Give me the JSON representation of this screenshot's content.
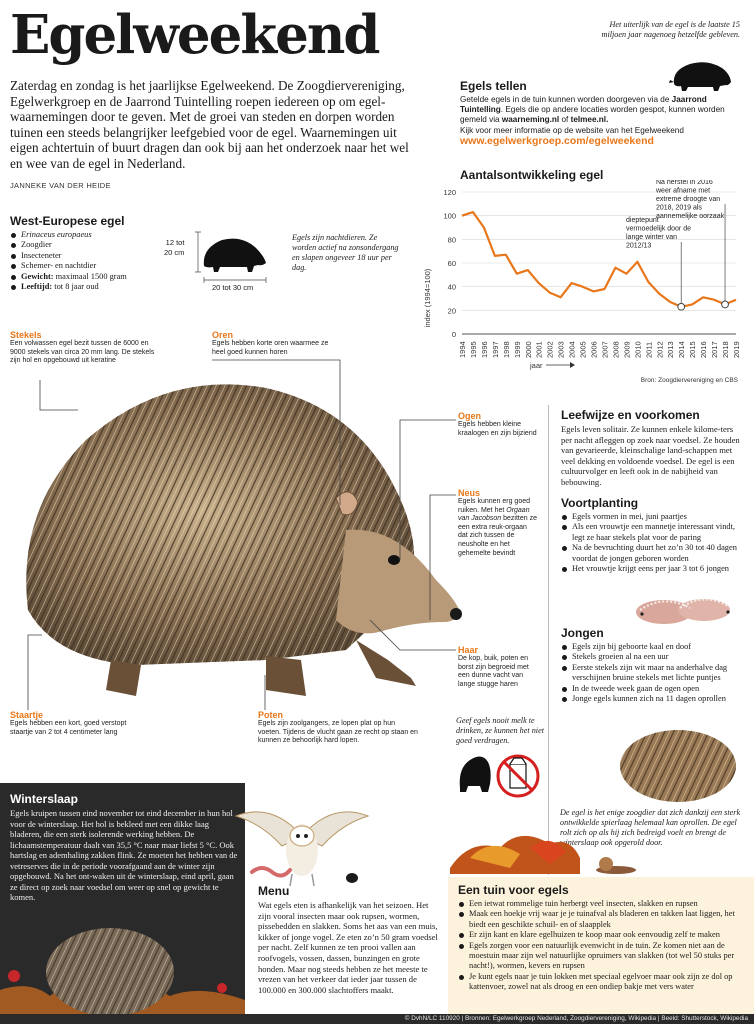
{
  "title": "Egelweekend",
  "intro": "Zaterdag en zondag is het jaarlijkse Egelweekend. De Zoogdiervereniging, Egelwerkgroep en de Jaarrond Tuintelling roepen iedereen op om egel-waarnemingen door te geven. Met de groei van steden en dorpen worden tuinen een steeds belangrijker leefgebied voor de egel. Waarnemingen uit eigen achtertuin of buurt dragen dan ook bij aan het onderzoek naar het wel en wee van de egel in Nederland.",
  "byline": "JANNEKE VAN DER HEIDE",
  "top_note": "Het uiterlijk van de egel is de laatste 15 miljoen jaar nagenoeg hetzelfde gebleven.",
  "tellen": {
    "title": "Egels tellen",
    "text_1": "Getelde egels in de tuin kunnen worden doorgeven via de ",
    "text_1_bold": "Jaarrond Tuintelling",
    "text_2": ". Egels die op andere locaties worden gespot, kunnen worden gemeld via ",
    "text_2_bold1": "waarneming.nl",
    "text_2_mid": " of ",
    "text_2_bold2": "telmee.nl.",
    "text_3": "Kijk voor meer informatie op de website van het Egelweekend",
    "link": "www.egelwerkgroep.com/egelweekend"
  },
  "west": {
    "title": "West-Europese egel",
    "items": [
      {
        "label": "",
        "value": "Erinaceus europaeus",
        "italic": true
      },
      {
        "label": "",
        "value": "Zoogdier"
      },
      {
        "label": "",
        "value": "Insecteneter"
      },
      {
        "label": "",
        "value": "Schemer- en nachtdier"
      },
      {
        "label": "Gewicht:",
        "value": " maximaal 1500 gram"
      },
      {
        "label": "Leeftijd:",
        "value": " tot 8 jaar oud"
      }
    ],
    "height_label": "12 tot\n20 cm",
    "length_label": "20 tot 30 cm",
    "night_note": "Egels zijn nachtdieren. Ze worden actief na zonsondergang en slapen ongeveer 18 uur per dag."
  },
  "chart_data": {
    "type": "line",
    "title": "Aantalsontwikkeling egel",
    "ylabel": "index (1994=100)",
    "xlabel": "jaar",
    "ylim": [
      0,
      120
    ],
    "yticks": [
      0,
      20,
      40,
      60,
      80,
      100,
      120
    ],
    "x": [
      1994,
      1995,
      1996,
      1997,
      1998,
      1999,
      2000,
      2001,
      2002,
      2003,
      2004,
      2005,
      2006,
      2007,
      2008,
      2009,
      2010,
      2011,
      2012,
      2013,
      2014,
      2015,
      2016,
      2017,
      2018,
      2019
    ],
    "series": [
      {
        "values": [
          100,
          103,
          90,
          66,
          67,
          51,
          54,
          43,
          35,
          31,
          43,
          40,
          36,
          38,
          56,
          51,
          61,
          44,
          34,
          27,
          23,
          25,
          31,
          29,
          25,
          29
        ],
        "color": "#e8771a"
      }
    ],
    "annotations": [
      {
        "text": "dieptepunt vermoedelijk door de lange winter van 2012/13",
        "x": 2014,
        "y": 23
      },
      {
        "text": "Na herstel in 2016 weer afname met extreme droogte van 2018, 2019 als aannemelijke oorzaak",
        "x": 2018,
        "y": 25
      }
    ],
    "grid": true,
    "source": "Bron: Zoogdiervereniging en CBS"
  },
  "labels": {
    "stekels": {
      "title": "Stekels",
      "text": "Een volwassen egel bezit tussen de 6000 en 9000 stekels van circa 20 mm lang. De stekels zijn hol en opgebouwd uit keratine"
    },
    "oren": {
      "title": "Oren",
      "text": "Egels hebben korte oren waarmee ze heel goed kunnen horen"
    },
    "ogen": {
      "title": "Ogen",
      "text": "Egels hebben kleine kraalogen en zijn bijziend"
    },
    "neus": {
      "title": "Neus",
      "text_1": "Egels kunnen erg goed ruiken. Met het ",
      "text_it": "Orgaan van Jacobson",
      "text_2": " bezitten ze een extra reuk-orgaan dat zich tussen de neusholte en het gehemelte bevindt"
    },
    "haar": {
      "title": "Haar",
      "text": "De kop, buik, poten en borst zijn begroeid met een dunne vacht van lange stugge haren"
    },
    "staartje": {
      "title": "Staartje",
      "text": "Egels hebben een kort, goed verstopt staartje van 2 tot 4 centimeter lang"
    },
    "poten": {
      "title": "Poten",
      "text": "Egels zijn zoolgangers, ze lopen plat op hun voeten. Tijdens de vlucht gaan ze recht op staan en kunnen ze behoorlijk hard lopen."
    }
  },
  "leefwijze": {
    "title": "Leefwijze en voorkomen",
    "text": "Egels leven solitair. Ze kunnen enkele kilome-ters per nacht afleggen op zoek naar voedsel. Ze houden van gevarieerde, kleinschalige land-schappen met veel dekking en voldoende voedsel. De egel is een cultuurvolger en leeft ook in de nabijheid van bebouwing."
  },
  "voortplanting": {
    "title": "Voortplanting",
    "items": [
      "Egels vormen in mei, juni paartjes",
      "Als een vrouwtje een mannetje interessant vindt, legt ze haar stekels plat voor de paring",
      "Na de bevruchting duurt het zo’n 30 tot 40 dagen voordat de jongen geboren worden",
      "Het vrouwtje krijgt eens per jaar 3 tot 6 jongen"
    ]
  },
  "jongen": {
    "title": "Jongen",
    "items": [
      "Egels zijn bij geboorte kaal en doof",
      "Stekels groeien al na een uur",
      "Eerste stekels zijn wit maar na anderhalve dag verschijnen bruine stekels met lichte puntjes",
      "In de tweede week gaan de ogen open",
      "Jonge egels kunnen zich na 11 dagen oprollen"
    ]
  },
  "melk_note": "Geef egels nooit melk te drinken, ze kunnen het niet goed verdragen.",
  "rol_note": "De egel is het enige zoogdier dat zich dankzij een sterk ontwikkelde spierlaag helemaal kan oprollen. De egel rolt zich op als hij zich bedreigd voelt en brengt de winterslaap ook opgerold door.",
  "winterslaap": {
    "title": "Winterslaap",
    "text": "Egels kruipen tussen eind november tot eind december in hun hol voor de winterslaap. Het hol is bekleed met een dikke laag bladeren, die een sterk isolerende werking hebben. De lichaamstemperatuur daalt van 35,5 °C naar maar liefst 5 °C. Ook hartslag en ademhaling zakken flink. Ze moeten het hebben van de vetreserves die in de periode voorafgaand aan de winter zijn opgebouwd. Na het ont-waken uit de winterslaap, eind april, gaan ze direct op zoek naar voedsel om weer op snel op gewicht te komen."
  },
  "menu": {
    "title": "Menu",
    "text": "Wat egels eten is afhankelijk van het seizoen. Het zijn vooral insecten maar ook rupsen, wormen, pissebedden en slakken. Soms het aas van een muis, kikker of jonge vogel. Ze eten zo’n 50 gram voedsel per nacht. Zelf kunnen ze ten prooi vallen aan roofvogels, vossen, dassen, bunzingen en grote honden. Maar nog steeds hebben ze het meeste te vrezen van het verkeer dat ieder jaar tussen de 100.000 en 300.000 slachtoffers maakt."
  },
  "tuin": {
    "title": "Een tuin voor egels",
    "items": [
      "Een ietwat rommelige tuin herbergt veel insecten, slakken en rupsen",
      "Maak een hoekje vrij waar je je tuinafval als bladeren en takken laat liggen, het biedt een geschikte schuil- en of slaapplek",
      "Er zijn kant en klare egelhuizen te koop maar ook eenvoudig zelf te maken",
      "Egels zorgen voor een natuurlijk evenwicht in de tuin. Ze komen niet aan de moestuin maar zijn wel natuurlijke opruimers van slakken (tot wel 50 stuks per nacht!), wormen, kevers en rupsen",
      "Je kunt egels naar je tuin lokken met speciaal egelvoer maar ook zijn ze dol op kattenvoer, zowel nat als droog en een ondiep bakje met vers water"
    ]
  },
  "footer": "© DvhN/LC 110920  |  Bronnen: Egelwerkgroep Nederland, Zoogdiervereniging, Wikipedia  |  Beeld: Shutterstock, Wikipedia",
  "colors": {
    "accent": "#e8771a",
    "dark_box": "#2a2a2a",
    "cream_box": "#fdf3dc"
  }
}
